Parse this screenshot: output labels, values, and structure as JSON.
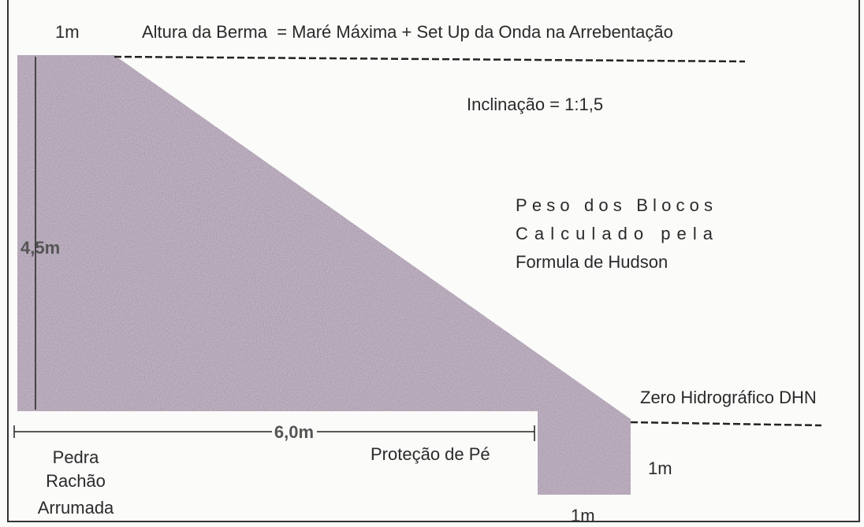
{
  "diagram": {
    "top_width": "1m",
    "berm_height": "Altura da Berma  = Maré Máxima + Set Up da Onda na Arrebentação",
    "slope": "Inclinação = 1:1,5",
    "height": "4,5m",
    "block_weight": [
      "Peso dos Blocos",
      "Calculado pela",
      "Formula de Hudson"
    ],
    "datum": "Zero Hidrográfico DHN",
    "base_length": "6,0m",
    "core_material": [
      "Pedra",
      "Rachão",
      "Arrumada"
    ],
    "toe_protection": "Proteção de Pé",
    "toe_height": "1m",
    "toe_width": "1m"
  }
}
